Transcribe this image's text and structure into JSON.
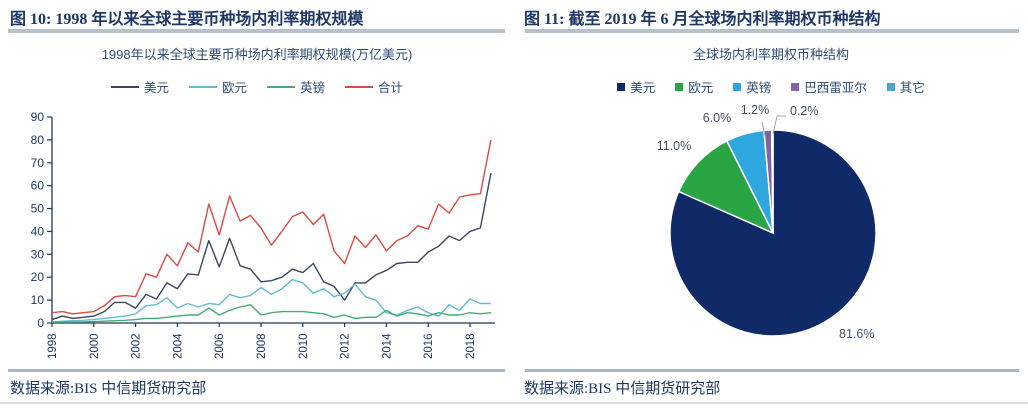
{
  "left_panel": {
    "header": "图 10: 1998 年以来全球主要币种场内利率期权规模",
    "source_label": "数据来源:BIS 中信期货研究部"
  },
  "right_panel": {
    "header": "图 11: 截至 2019 年 6 月全球场内利率期权币种结构",
    "source_label": "数据来源:BIS 中信期货研究部"
  },
  "colors": {
    "header_text": "#1e3765",
    "chart_text": "#2e4c78",
    "axis": "#1f3864",
    "leader_line": "#a6a6a6",
    "divider": "#b7c1cb"
  },
  "chart_data": [
    {
      "type": "line",
      "title": "1998年以来全球主要币种场内利率期权规模(万亿美元)",
      "x_start": 1998,
      "x_step_years": 0.5,
      "x_tick_labels": [
        "1998",
        "2000",
        "2002",
        "2004",
        "2006",
        "2008",
        "2010",
        "2012",
        "2014",
        "2016",
        "2018"
      ],
      "ylim": [
        0,
        90
      ],
      "y_ticks": [
        0,
        10,
        20,
        30,
        40,
        50,
        60,
        70,
        80,
        90
      ],
      "grid": false,
      "legend_position": "top",
      "series": [
        {
          "name": "美元",
          "color": "#3d4660",
          "values": [
            1.5,
            3,
            2,
            2.5,
            3,
            5,
            9,
            9,
            6.5,
            12.5,
            10.5,
            17.5,
            15,
            21.5,
            21,
            36,
            24.5,
            37,
            25,
            23.5,
            18,
            18.5,
            20,
            23.5,
            22,
            26,
            18,
            16,
            10,
            17.5,
            17.5,
            21,
            23,
            26,
            26.5,
            26.5,
            31,
            33.5,
            38,
            36,
            40,
            41.5,
            65.5
          ]
        },
        {
          "name": "欧元",
          "color": "#62bcd4",
          "values": [
            0.5,
            0.8,
            1,
            1.2,
            1.5,
            2,
            2.5,
            3,
            4,
            7.5,
            8,
            11,
            6.5,
            8.5,
            7,
            8.5,
            8,
            12.5,
            11,
            12,
            15.5,
            12.5,
            15,
            19,
            17.5,
            13,
            15,
            11.5,
            13,
            17,
            11.5,
            10,
            4.5,
            3.5,
            5.5,
            7,
            4.5,
            3,
            8,
            5.5,
            10.5,
            8.5,
            8.5
          ]
        },
        {
          "name": "英镑",
          "color": "#49aa77",
          "values": [
            0.3,
            0.4,
            0.4,
            0.5,
            0.6,
            0.8,
            1,
            1.2,
            1.5,
            2,
            2,
            2.5,
            3,
            3.5,
            3.5,
            6.5,
            3.5,
            5.5,
            7,
            8,
            3.5,
            4.5,
            5,
            5,
            5,
            4.5,
            4,
            2.5,
            3.5,
            2,
            2.5,
            2.5,
            5.5,
            3,
            4.5,
            4,
            3,
            4.5,
            3.5,
            3.5,
            4.5,
            4,
            4.5
          ]
        },
        {
          "name": "合计",
          "color": "#dd4a45",
          "values": [
            4.5,
            5,
            4,
            4.5,
            5,
            7.5,
            11.5,
            12,
            11.5,
            21.5,
            20,
            30,
            25,
            35,
            31,
            52,
            38.5,
            55.5,
            44.5,
            47,
            41.5,
            34,
            40,
            46.5,
            48.5,
            43,
            47.5,
            31.5,
            26,
            38,
            33,
            38.5,
            31.5,
            36,
            38,
            42.5,
            41,
            52,
            48,
            55,
            56,
            56.5,
            80
          ]
        }
      ]
    },
    {
      "type": "pie",
      "title": "全球场内利率期权币种结构",
      "legend_position": "top",
      "slices": [
        {
          "name": "美元",
          "value": 81.6,
          "label": "81.6%",
          "color": "#0f2a66"
        },
        {
          "name": "欧元",
          "value": 11.0,
          "label": "11.0%",
          "color": "#2aa546"
        },
        {
          "name": "英镑",
          "value": 6.0,
          "label": "6.0%",
          "color": "#2ea7e0"
        },
        {
          "name": "巴西雷亚尔",
          "value": 1.2,
          "label": "1.2%",
          "color": "#8064a2"
        },
        {
          "name": "其它",
          "value": 0.2,
          "label": "0.2%",
          "color": "#45a7ca"
        }
      ]
    }
  ]
}
